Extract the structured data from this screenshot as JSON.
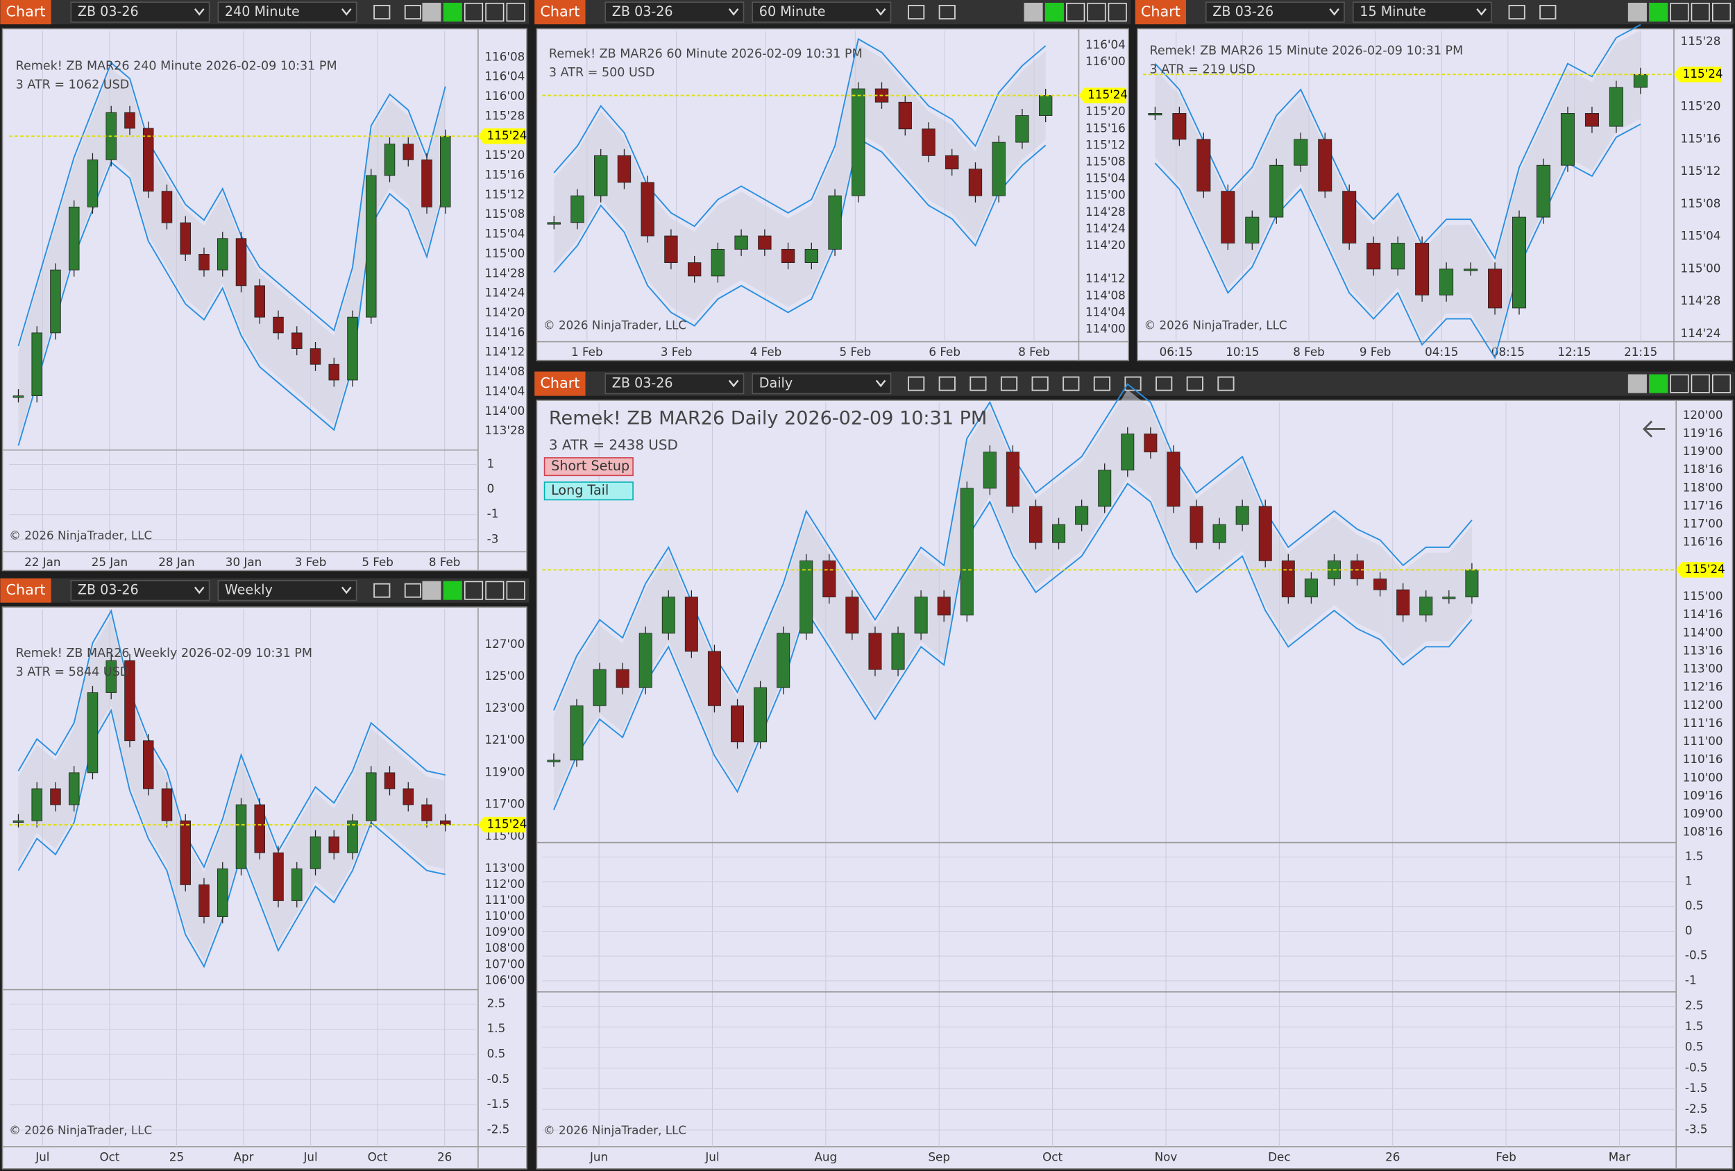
{
  "windows": [
    {
      "toolbar": {
        "title": "Chart",
        "instrument": "ZB 03-26",
        "interval": "240 Minute"
      },
      "header": "Remek!  ZB MAR26  240 Minute  2026-02-09 10:31 PM",
      "atr": "3 ATR = 1062 USD",
      "tags": [],
      "price_labels": [
        "116'08",
        "116'04",
        "116'00",
        "115'28",
        "115'20",
        "115'16",
        "115'12",
        "115'08",
        "115'04",
        "115'00",
        "114'28",
        "114'24",
        "114'20",
        "114'16",
        "114'12",
        "114'08",
        "114'04",
        "114'00",
        "113'28"
      ],
      "current_price": "115'24",
      "time_labels": [
        "22 Jan",
        "25 Jan",
        "28 Jan",
        "30 Jan",
        "3 Feb",
        "5 Feb",
        "8 Feb"
      ],
      "osc_labels": [
        [
          "1",
          "0",
          "-1",
          "-3"
        ]
      ],
      "copyright": "© 2026 NinjaTrader, LLC",
      "closes": [
        114.1,
        114.5,
        114.9,
        115.3,
        115.6,
        115.9,
        115.8,
        115.4,
        115.2,
        115.0,
        114.9,
        115.1,
        114.8,
        114.6,
        114.5,
        114.4,
        114.3,
        114.2,
        114.6,
        115.5,
        115.7,
        115.6,
        115.3,
        115.75
      ]
    },
    {
      "toolbar": {
        "title": "Chart",
        "instrument": "ZB 03-26",
        "interval": "60 Minute"
      },
      "header": "Remek!  ZB MAR26  60 Minute  2026-02-09 10:31 PM",
      "atr": "3 ATR = 500 USD",
      "tags": [],
      "price_labels": [
        "116'04",
        "116'00",
        "115'20",
        "115'16",
        "115'12",
        "115'08",
        "115'04",
        "115'00",
        "114'28",
        "114'24",
        "114'20",
        "114'12",
        "114'08",
        "114'04",
        "114'00"
      ],
      "current_price": "115'24",
      "time_labels": [
        "1 Feb",
        "3 Feb",
        "4 Feb",
        "5 Feb",
        "6 Feb",
        "8 Feb"
      ],
      "osc_labels": [],
      "copyright": "© 2026 NinjaTrader, LLC",
      "closes": [
        114.8,
        115.0,
        115.3,
        115.1,
        114.7,
        114.5,
        114.4,
        114.6,
        114.7,
        114.6,
        114.5,
        114.6,
        115.0,
        115.8,
        115.7,
        115.5,
        115.3,
        115.2,
        115.0,
        115.4,
        115.6,
        115.75
      ]
    },
    {
      "toolbar": {
        "title": "Chart",
        "instrument": "ZB 03-26",
        "interval": "15 Minute"
      },
      "header": "Remek!  ZB MAR26  15 Minute  2026-02-09 10:31 PM",
      "atr": "3 ATR = 219 USD",
      "tags": [],
      "price_labels": [
        "115'28",
        "115'20",
        "115'16",
        "115'12",
        "115'08",
        "115'04",
        "115'00",
        "114'28",
        "114'24"
      ],
      "current_price": "115'24",
      "time_labels": [
        "06:15",
        "10:15",
        "8 Feb",
        "9 Feb",
        "04:15",
        "08:15",
        "12:15",
        "21:15"
      ],
      "osc_labels": [],
      "copyright": "© 2026 NinjaTrader, LLC",
      "closes": [
        115.6,
        115.5,
        115.3,
        115.1,
        115.2,
        115.4,
        115.5,
        115.3,
        115.1,
        115.0,
        115.1,
        114.9,
        115.0,
        115.0,
        114.85,
        115.2,
        115.4,
        115.6,
        115.55,
        115.7,
        115.75
      ]
    },
    {
      "toolbar": {
        "title": "Chart",
        "instrument": "ZB 03-26",
        "interval": "Weekly"
      },
      "header": "Remek!  ZB MAR26  Weekly  2026-02-09 10:31 PM",
      "atr": "3 ATR = 5844 USD",
      "tags": [],
      "price_labels": [
        "127'00",
        "125'00",
        "123'00",
        "121'00",
        "119'00",
        "117'00",
        "115'00",
        "113'00",
        "112'00",
        "111'00",
        "110'00",
        "109'00",
        "108'00",
        "107'00",
        "106'00"
      ],
      "current_price": "115'24",
      "time_labels": [
        "Jul",
        "Oct",
        "25",
        "Apr",
        "Jul",
        "Oct",
        "26"
      ],
      "osc_labels": [
        [
          "2.5",
          "1.5",
          "0.5",
          "-0.5",
          "-1.5",
          "-2.5"
        ]
      ],
      "copyright": "© 2026 NinjaTrader, LLC",
      "closes": [
        116,
        118,
        117,
        119,
        124,
        126,
        121,
        118,
        116,
        112,
        110,
        113,
        117,
        114,
        111,
        113,
        115,
        114,
        116,
        119,
        118,
        117,
        116,
        115.75
      ]
    },
    {
      "toolbar": {
        "title": "Chart",
        "instrument": "ZB 03-26",
        "interval": "Daily"
      },
      "header": "Remek!  ZB MAR26  Daily  2026-02-09 10:31 PM",
      "atr": "3 ATR = 2438 USD",
      "tags": [
        "Short Setup",
        "Long Tail"
      ],
      "price_labels": [
        "120'00",
        "119'16",
        "119'00",
        "118'16",
        "118'00",
        "117'16",
        "117'00",
        "116'16",
        "115'00",
        "114'16",
        "114'00",
        "113'16",
        "113'00",
        "112'16",
        "112'00",
        "111'16",
        "111'00",
        "110'16",
        "110'00",
        "109'16",
        "109'00",
        "108'16"
      ],
      "current_price": "115'24",
      "time_labels": [
        "Jun",
        "Jul",
        "Aug",
        "Sep",
        "Oct",
        "Nov",
        "Dec",
        "26",
        "Feb",
        "Mar"
      ],
      "osc_labels": [
        [
          "1.5",
          "1",
          "0.5",
          "0",
          "-0.5",
          "-1"
        ],
        [
          "2.5",
          "1.5",
          "0.5",
          "-0.5",
          "-1.5",
          "-2.5",
          "-3.5"
        ]
      ],
      "copyright": "© 2026 NinjaTrader, LLC",
      "closes": [
        110.5,
        112,
        113,
        112.5,
        114,
        115,
        113.5,
        112,
        111,
        112.5,
        114,
        116,
        115,
        114,
        113,
        114,
        115,
        114.5,
        118,
        119,
        117.5,
        116.5,
        117,
        117.5,
        118.5,
        119.5,
        119,
        117.5,
        116.5,
        117,
        117.5,
        116,
        115,
        115.5,
        116,
        115.5,
        115.2,
        114.5,
        115,
        115,
        115.75
      ]
    }
  ]
}
